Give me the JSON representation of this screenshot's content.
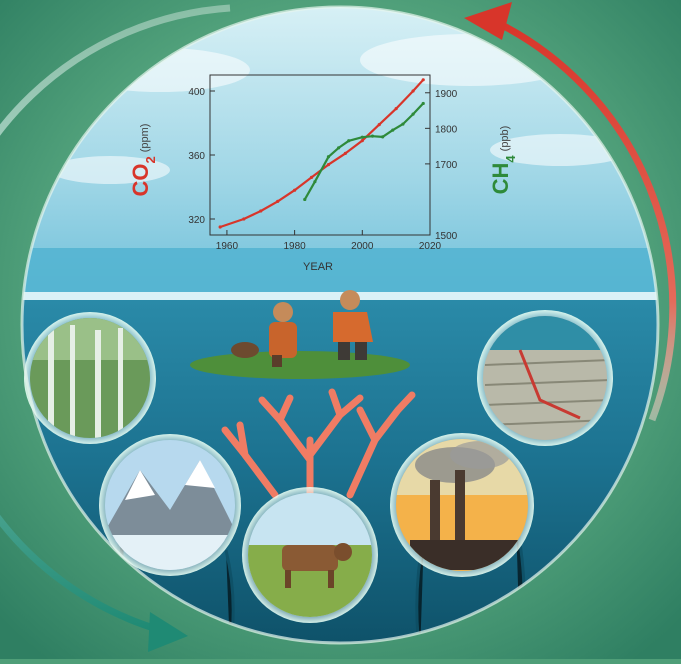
{
  "background": {
    "colors": [
      "#8fd0a8",
      "#58a880",
      "#2f7f62"
    ]
  },
  "cycle_arrows": {
    "left_arrow_color": "#2a8a74",
    "right_arrow_color": "#d8352a",
    "left_arrow_icon": "curved-arrow-down-icon",
    "right_arrow_icon": "curved-arrow-up-icon"
  },
  "chart_data": {
    "type": "line",
    "xlabel": "YEAR",
    "x_ticks": [
      "1960",
      "1980",
      "2000",
      "2020"
    ],
    "xlim": [
      1955,
      2020
    ],
    "y_left": {
      "label_main": "CO",
      "label_sub": "2",
      "label_unit": "(ppm)",
      "ticks": [
        "320",
        "360",
        "400"
      ],
      "ylim": [
        310,
        410
      ],
      "color": "#d8352a"
    },
    "y_right": {
      "label_main": "CH",
      "label_sub": "4",
      "label_unit": "(ppb)",
      "ticks": [
        "1500",
        "1700",
        "1800",
        "1900"
      ],
      "ylim": [
        1500,
        1950
      ],
      "color": "#2e8a3a"
    },
    "series": [
      {
        "axis": "left",
        "color": "#d8352a",
        "x": [
          1958,
          1965,
          1970,
          1975,
          1980,
          1985,
          1990,
          1995,
          2000,
          2005,
          2010,
          2015,
          2018
        ],
        "values": [
          315,
          320,
          325,
          331,
          338,
          346,
          354,
          361,
          369,
          379,
          389,
          400,
          407
        ]
      },
      {
        "axis": "right",
        "color": "#2e8a3a",
        "x": [
          1983,
          1986,
          1990,
          1993,
          1996,
          2000,
          2003,
          2006,
          2009,
          2012,
          2015,
          2018
        ],
        "values": [
          1600,
          1650,
          1720,
          1745,
          1765,
          1775,
          1778,
          1776,
          1795,
          1812,
          1840,
          1870
        ]
      }
    ]
  },
  "scene": {
    "vignettes": [
      {
        "name": "forest",
        "icon": "forest-icon"
      },
      {
        "name": "glacier",
        "icon": "glacier-icon"
      },
      {
        "name": "pasture-cow",
        "icon": "cow-icon"
      },
      {
        "name": "smokestacks",
        "icon": "factory-icon"
      },
      {
        "name": "rice-paddy",
        "icon": "paddy-icon"
      }
    ],
    "center_figures": {
      "icon": "scientists-icon"
    },
    "coral": {
      "icon": "coral-icon",
      "color": "#f07c64"
    }
  }
}
